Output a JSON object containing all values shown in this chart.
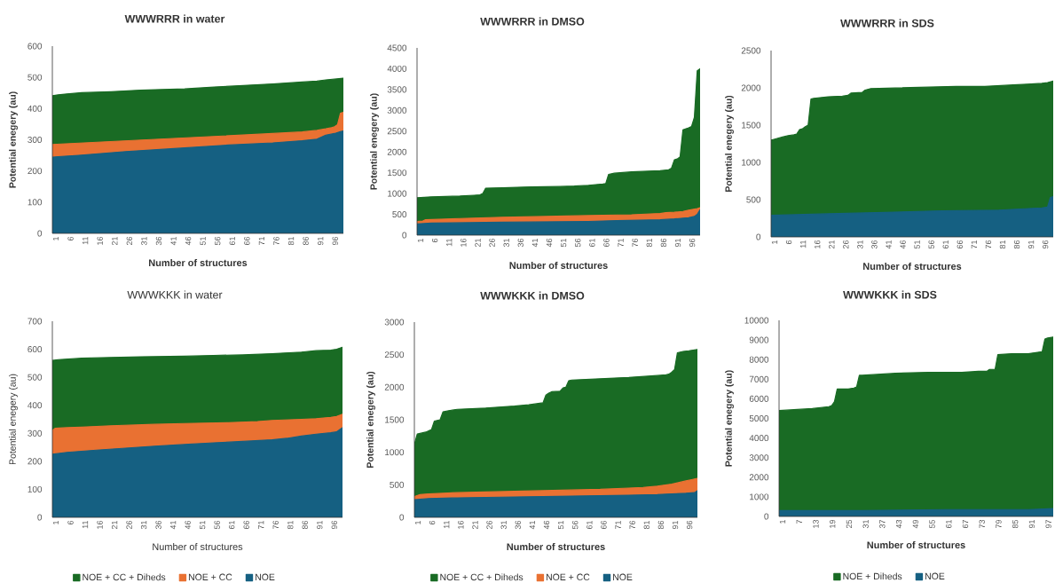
{
  "chart_data": [
    {
      "type": "area",
      "title": "WWWRRR in water",
      "xlabel": "Number of structures",
      "ylabel": "Potential enegery (au)",
      "xlim": [
        1,
        100
      ],
      "xticks": [
        1,
        6,
        11,
        16,
        21,
        26,
        31,
        36,
        41,
        46,
        51,
        56,
        61,
        66,
        71,
        76,
        81,
        86,
        91,
        96
      ],
      "ylim": [
        0,
        600
      ],
      "yticks": [
        0,
        100,
        200,
        300,
        400,
        500,
        600
      ],
      "series": [
        {
          "color": "#196b24",
          "x": [
            1,
            3,
            6,
            11,
            21,
            31,
            41,
            46,
            56,
            66,
            76,
            86,
            91,
            94,
            100
          ],
          "values": [
            441,
            444,
            447,
            451,
            454,
            459,
            462,
            463,
            469,
            474,
            479,
            485,
            488,
            492,
            497
          ]
        },
        {
          "color": "#e97132",
          "x": [
            1,
            76,
            86,
            91,
            94,
            96,
            97,
            98,
            99,
            100
          ],
          "values": [
            285,
            320,
            325,
            330,
            335,
            339,
            342,
            348,
            385,
            388
          ]
        },
        {
          "color": "#156082",
          "x": [
            1,
            3,
            10,
            26,
            46,
            61,
            76,
            86,
            91,
            94,
            97,
            99,
            100
          ],
          "values": [
            244,
            246,
            250,
            262,
            274,
            283,
            290,
            297,
            302,
            315,
            320,
            326,
            328
          ]
        }
      ]
    },
    {
      "type": "area",
      "title": "WWWRRR in DMSO",
      "xlabel": "Number of structures",
      "ylabel": "Potential enegery (au)",
      "xlim": [
        1,
        100
      ],
      "xticks": [
        1,
        6,
        11,
        16,
        21,
        26,
        31,
        36,
        41,
        46,
        51,
        56,
        61,
        66,
        71,
        76,
        81,
        86,
        91,
        96
      ],
      "ylim": [
        0,
        4500
      ],
      "yticks": [
        0,
        500,
        1000,
        1500,
        2000,
        2500,
        3000,
        3500,
        4000,
        4500
      ],
      "series": [
        {
          "color": "#196b24",
          "x": [
            1,
            6,
            11,
            16,
            21,
            23,
            24,
            25,
            31,
            41,
            51,
            56,
            61,
            66,
            67,
            68,
            70,
            76,
            86,
            89,
            90,
            91,
            92,
            93,
            94,
            96,
            97,
            98,
            99,
            100
          ],
          "values": [
            900,
            920,
            930,
            940,
            960,
            970,
            1000,
            1130,
            1140,
            1160,
            1170,
            1180,
            1200,
            1230,
            1240,
            1460,
            1490,
            1520,
            1550,
            1570,
            1610,
            1810,
            1830,
            1880,
            2530,
            2580,
            2610,
            2830,
            3950,
            4000
          ]
        },
        {
          "color": "#e97132",
          "x": [
            1,
            3,
            4,
            16,
            31,
            46,
            61,
            76,
            86,
            88,
            91,
            94,
            96,
            99,
            100
          ],
          "values": [
            330,
            340,
            370,
            400,
            430,
            450,
            470,
            490,
            520,
            540,
            550,
            570,
            600,
            640,
            660
          ]
        },
        {
          "color": "#156082",
          "x": [
            1,
            6,
            31,
            61,
            71,
            86,
            91,
            96,
            98,
            99,
            100
          ],
          "values": [
            270,
            290,
            310,
            330,
            350,
            370,
            390,
            420,
            450,
            500,
            610
          ]
        }
      ]
    },
    {
      "type": "area",
      "title": "WWWRRR in SDS",
      "xlabel": "Number of structures",
      "ylabel": "Potential enegery (au)",
      "xlim": [
        1,
        100
      ],
      "xticks": [
        1,
        6,
        11,
        16,
        21,
        26,
        31,
        36,
        41,
        46,
        51,
        56,
        61,
        66,
        71,
        76,
        81,
        86,
        91,
        96
      ],
      "ylim": [
        0,
        2500
      ],
      "yticks": [
        0,
        500,
        1000,
        1500,
        2000,
        2500
      ],
      "series": [
        {
          "color": "#196b24",
          "x": [
            1,
            2,
            5,
            7,
            9,
            10,
            11,
            12,
            13,
            14,
            15,
            16,
            21,
            26,
            28,
            29,
            33,
            34,
            36,
            46,
            56,
            66,
            76,
            86,
            91,
            96,
            98,
            100
          ],
          "values": [
            1300,
            1310,
            1340,
            1360,
            1370,
            1380,
            1440,
            1450,
            1480,
            1500,
            1850,
            1860,
            1880,
            1890,
            1900,
            1930,
            1940,
            1970,
            1990,
            2000,
            2010,
            2020,
            2020,
            2040,
            2050,
            2060,
            2070,
            2090
          ]
        },
        {
          "color": "#156082",
          "x": [
            1,
            21,
            41,
            61,
            81,
            96,
            98,
            99,
            100
          ],
          "values": [
            290,
            310,
            330,
            350,
            360,
            390,
            400,
            530,
            540
          ]
        }
      ]
    },
    {
      "type": "area",
      "title": "WWWKKK in water",
      "xlabel": "Number of structures",
      "ylabel": "Potential enegery (au)",
      "xlim": [
        1,
        100
      ],
      "xticks": [
        1,
        6,
        11,
        16,
        21,
        26,
        31,
        36,
        41,
        46,
        51,
        56,
        61,
        66,
        71,
        76,
        81,
        86,
        91,
        96
      ],
      "ylim": [
        0,
        700
      ],
      "yticks": [
        0,
        100,
        200,
        300,
        400,
        500,
        600,
        700
      ],
      "legend": "bottom",
      "series": [
        {
          "name": "NOE + CC + Diheds",
          "color": "#196b24",
          "x": [
            1,
            3,
            11,
            21,
            31,
            46,
            56,
            66,
            76,
            86,
            91,
            96,
            98,
            100
          ],
          "values": [
            560,
            563,
            568,
            571,
            573,
            575,
            578,
            580,
            584,
            590,
            595,
            597,
            600,
            607
          ]
        },
        {
          "name": "NOE + CC",
          "color": "#e97132",
          "x": [
            1,
            2,
            6,
            11,
            21,
            36,
            46,
            61,
            71,
            76,
            86,
            91,
            96,
            98,
            100
          ],
          "values": [
            310,
            318,
            320,
            322,
            327,
            332,
            335,
            338,
            342,
            346,
            350,
            352,
            357,
            360,
            368
          ]
        },
        {
          "name": "NOE",
          "color": "#156082",
          "x": [
            1,
            6,
            16,
            26,
            36,
            46,
            56,
            66,
            76,
            81,
            86,
            91,
            96,
            98,
            99,
            100
          ],
          "values": [
            225,
            232,
            240,
            247,
            254,
            260,
            266,
            271,
            277,
            282,
            290,
            297,
            302,
            305,
            313,
            320
          ]
        }
      ]
    },
    {
      "type": "area",
      "title": "WWWKKK in DMSO",
      "xlabel": "Number of structures",
      "ylabel": "Potential enegery (au)",
      "xlim": [
        1,
        100
      ],
      "xticks": [
        1,
        6,
        11,
        16,
        21,
        26,
        31,
        36,
        41,
        46,
        51,
        56,
        61,
        66,
        71,
        76,
        81,
        86,
        91,
        96
      ],
      "ylim": [
        0,
        3000
      ],
      "yticks": [
        0,
        500,
        1000,
        1500,
        2000,
        2500,
        3000
      ],
      "legend": "bottom",
      "series": [
        {
          "name": "NOE + CC + Diheds",
          "color": "#196b24",
          "x": [
            1,
            2,
            5,
            6,
            7,
            8,
            10,
            11,
            13,
            16,
            26,
            36,
            41,
            46,
            47,
            48,
            49,
            52,
            53,
            54,
            55,
            56,
            66,
            76,
            86,
            89,
            90,
            91,
            92,
            93,
            95,
            97,
            100
          ],
          "values": [
            1120,
            1280,
            1310,
            1330,
            1350,
            1480,
            1500,
            1620,
            1640,
            1660,
            1680,
            1710,
            1730,
            1760,
            1880,
            1910,
            1930,
            1940,
            1990,
            2000,
            2100,
            2110,
            2130,
            2150,
            2180,
            2190,
            2200,
            2230,
            2270,
            2530,
            2550,
            2560,
            2580
          ]
        },
        {
          "name": "NOE + CC",
          "color": "#e97132",
          "x": [
            1,
            3,
            6,
            16,
            26,
            36,
            46,
            56,
            66,
            76,
            81,
            86,
            91,
            93,
            96,
            98,
            100
          ],
          "values": [
            320,
            350,
            360,
            380,
            390,
            400,
            410,
            420,
            430,
            450,
            460,
            480,
            510,
            530,
            560,
            580,
            600
          ]
        },
        {
          "name": "NOE",
          "color": "#156082",
          "x": [
            1,
            6,
            16,
            31,
            46,
            61,
            76,
            86,
            91,
            96,
            99,
            100
          ],
          "values": [
            270,
            290,
            300,
            310,
            320,
            330,
            340,
            350,
            360,
            370,
            380,
            410
          ]
        }
      ]
    },
    {
      "type": "area",
      "title": "WWWKKK in SDS",
      "xlabel": "Number of structures",
      "ylabel": "Potential enegery (au)",
      "xlim": [
        1,
        100
      ],
      "xticks": [
        1,
        7,
        13,
        19,
        25,
        31,
        37,
        43,
        49,
        55,
        61,
        67,
        73,
        79,
        85,
        91,
        97
      ],
      "ylim": [
        0,
        10000
      ],
      "yticks": [
        0,
        1000,
        2000,
        3000,
        4000,
        5000,
        6000,
        7000,
        8000,
        9000,
        10000
      ],
      "legend": "bottom",
      "series": [
        {
          "name": "NOE + Diheds",
          "color": "#196b24",
          "x": [
            1,
            7,
            13,
            16,
            19,
            20,
            21,
            22,
            26,
            28,
            29,
            30,
            31,
            37,
            43,
            55,
            67,
            73,
            76,
            77,
            79,
            80,
            85,
            91,
            96,
            97,
            98,
            100
          ],
          "values": [
            5400,
            5450,
            5500,
            5550,
            5600,
            5650,
            5850,
            6500,
            6500,
            6550,
            6600,
            7200,
            7200,
            7250,
            7300,
            7350,
            7350,
            7400,
            7400,
            7500,
            7500,
            8250,
            8300,
            8300,
            8400,
            9050,
            9100,
            9150
          ]
        },
        {
          "name": "NOE",
          "color": "#156082",
          "x": [
            1,
            31,
            61,
            91,
            100
          ],
          "values": [
            300,
            300,
            350,
            350,
            400
          ]
        }
      ]
    }
  ]
}
